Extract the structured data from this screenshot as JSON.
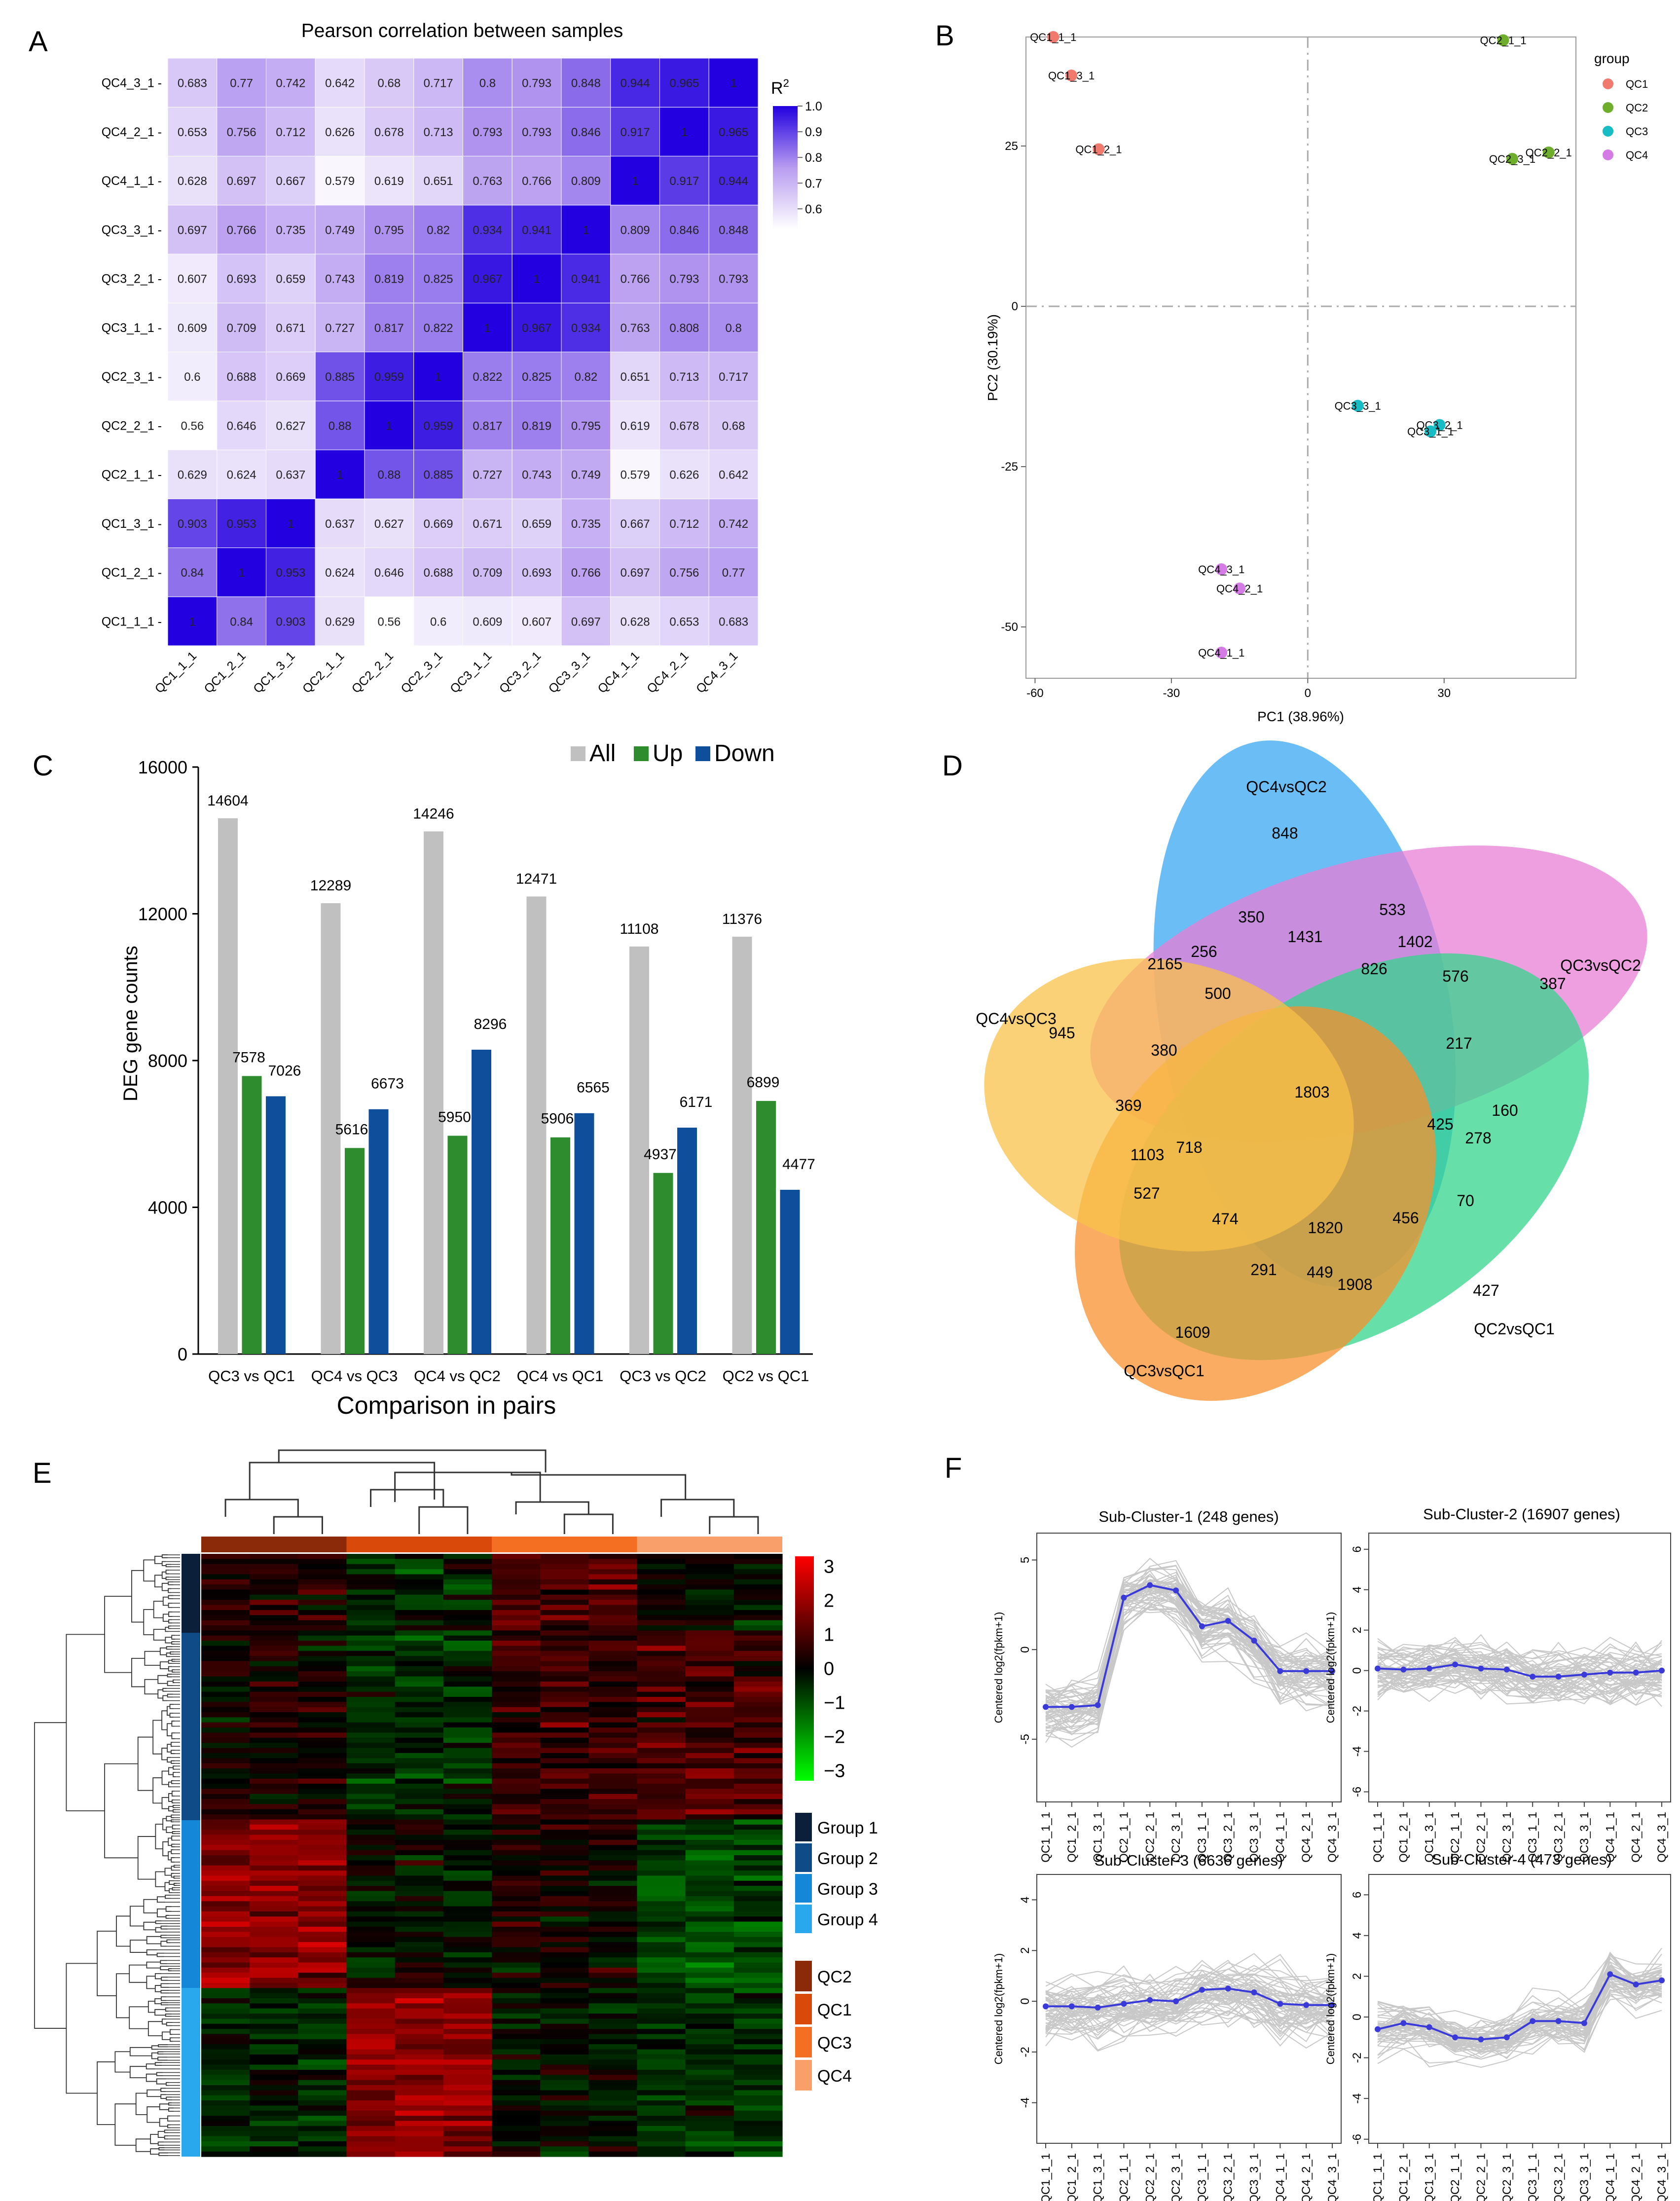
{
  "panel_letters": [
    "A",
    "B",
    "C",
    "D",
    "E",
    "F"
  ],
  "chart_data": [
    {
      "id": "A",
      "type": "heatmap",
      "title": "Pearson correlation between samples",
      "samples": [
        "QC1_1_1",
        "QC1_2_1",
        "QC1_3_1",
        "QC2_1_1",
        "QC2_2_1",
        "QC2_3_1",
        "QC3_1_1",
        "QC3_2_1",
        "QC3_3_1",
        "QC4_1_1",
        "QC4_2_1",
        "QC4_3_1"
      ],
      "row_labels": [
        "QC4_3_1 -",
        "QC4_2_1 -",
        "QC4_1_1 -",
        "QC3_3_1 -",
        "QC3_2_1 -",
        "QC3_1_1 -",
        "QC2_3_1 -",
        "QC2_2_1 -",
        "QC2_1_1 -",
        "QC1_3_1 -",
        "QC1_2_1 -",
        "QC1_1_1 -"
      ],
      "matrix": [
        [
          1,
          0.84,
          0.903,
          0.629,
          0.56,
          0.6,
          0.609,
          0.607,
          0.697,
          0.628,
          0.653,
          0.683
        ],
        [
          0.84,
          1,
          0.953,
          0.624,
          0.646,
          0.688,
          0.709,
          0.693,
          0.766,
          0.697,
          0.756,
          0.77
        ],
        [
          0.903,
          0.953,
          1,
          0.637,
          0.627,
          0.669,
          0.671,
          0.659,
          0.735,
          0.667,
          0.712,
          0.742
        ],
        [
          0.629,
          0.624,
          0.637,
          1,
          0.88,
          0.885,
          0.727,
          0.743,
          0.749,
          0.579,
          0.626,
          0.642
        ],
        [
          0.56,
          0.646,
          0.627,
          0.88,
          1,
          0.959,
          0.817,
          0.819,
          0.795,
          0.619,
          0.678,
          0.68
        ],
        [
          0.6,
          0.688,
          0.669,
          0.885,
          0.959,
          1,
          0.822,
          0.825,
          0.82,
          0.651,
          0.713,
          0.717
        ],
        [
          0.609,
          0.709,
          0.671,
          0.727,
          0.817,
          0.822,
          1,
          0.967,
          0.934,
          0.763,
          0.808,
          0.8
        ],
        [
          0.607,
          0.693,
          0.659,
          0.743,
          0.819,
          0.825,
          0.967,
          1,
          0.941,
          0.766,
          0.793,
          0.793
        ],
        [
          0.697,
          0.766,
          0.735,
          0.749,
          0.795,
          0.82,
          0.934,
          0.941,
          1,
          0.809,
          0.846,
          0.848
        ],
        [
          0.628,
          0.697,
          0.667,
          0.579,
          0.619,
          0.651,
          0.763,
          0.766,
          0.809,
          1,
          0.917,
          0.944
        ],
        [
          0.653,
          0.756,
          0.712,
          0.626,
          0.678,
          0.713,
          0.793,
          0.793,
          0.846,
          0.917,
          1,
          0.965
        ],
        [
          0.683,
          0.77,
          0.742,
          0.642,
          0.68,
          0.717,
          0.8,
          0.793,
          0.848,
          0.944,
          0.965,
          1
        ]
      ],
      "cell_text": [
        [
          "1",
          "0.84",
          "0.903",
          "0.629",
          "0.56",
          "0.6",
          "0.609",
          "0.607",
          "0.697",
          "0.628",
          "0.653",
          "0.683"
        ],
        [
          "0.84",
          "1",
          "0.953",
          "0.624",
          "0.646",
          "0.688",
          "0.709",
          "0.693",
          "0.766",
          "0.697",
          "0.756",
          "0.77"
        ],
        [
          "0.903",
          "0.953",
          "1",
          "0.637",
          "0.627",
          "0.669",
          "0.671",
          "0.659",
          "0.735",
          "0.667",
          "0.712",
          "0.742"
        ],
        [
          "0.629",
          "0.624",
          "0.637",
          "1",
          "0.88",
          "0.885",
          "0.727",
          "0.743",
          "0.749",
          "0.579",
          "0.626",
          "0.642"
        ],
        [
          "0.56",
          "0.646",
          "0.627",
          "0.88",
          "1",
          "0.959",
          "0.817",
          "0.819",
          "0.795",
          "0.619",
          "0.678",
          "0.68"
        ],
        [
          "0.6",
          "0.688",
          "0.669",
          "0.885",
          "0.959",
          "1",
          "0.822",
          "0.825",
          "0.82",
          "0.651",
          "0.713",
          "0.717"
        ],
        [
          "0.609",
          "0.709",
          "0.671",
          "0.727",
          "0.817",
          "0.822",
          "1",
          "0.967",
          "0.934",
          "0.763",
          "0.808",
          "0.8"
        ],
        [
          "0.607",
          "0.693",
          "0.659",
          "0.743",
          "0.819",
          "0.825",
          "0.967",
          "1",
          "0.941",
          "0.766",
          "0.793",
          "0.793"
        ],
        [
          "0.697",
          "0.766",
          "0.735",
          "0.749",
          "0.795",
          "0.82",
          "0.934",
          "0.941",
          "1",
          "0.809",
          "0.846",
          "0.848"
        ],
        [
          "0.628",
          "0.697",
          "0.667",
          "0.579",
          "0.619",
          "0.651",
          "0.763",
          "0.766",
          "0.809",
          "1",
          "0.917",
          "0.944"
        ],
        [
          "0.653",
          "0.756",
          "0.712",
          "0.626",
          "0.678",
          "0.713",
          "0.793",
          "0.793",
          "0.846",
          "0.917",
          "1",
          "0.965"
        ],
        [
          "0.683",
          "0.77",
          "0.742",
          "0.642",
          "0.68",
          "0.717",
          "0.8",
          "0.793",
          "0.848",
          "0.944",
          "0.965",
          "1"
        ]
      ],
      "legend_title": "R",
      "legend_title_sup": "2",
      "legend_ticks": [
        "1.0",
        "0.9",
        "0.8",
        "0.7",
        "0.6"
      ],
      "legend_tick_values": [
        1.0,
        0.9,
        0.8,
        0.7,
        0.6
      ],
      "color_range": [
        0.56,
        1.0
      ],
      "colors": {
        "low": "#ffffff",
        "mid": "#b89cf0",
        "high": "#2200e0"
      }
    },
    {
      "id": "B",
      "type": "scatter",
      "xlabel": "PC1 (38.96%)",
      "ylabel": "PC2 (30.19%)",
      "xlim": [
        -62,
        59
      ],
      "ylim": [
        -58,
        42
      ],
      "xticks": [
        -60,
        -30,
        0,
        30
      ],
      "xtick_labels": [
        "-60",
        "-30",
        "0",
        "30"
      ],
      "yticks": [
        25,
        0,
        -25,
        -50
      ],
      "ytick_labels": [
        "25",
        "0",
        "-25",
        "-50"
      ],
      "legend_title": "group",
      "groups": [
        {
          "name": "QC1",
          "color": "#f07a6e"
        },
        {
          "name": "QC2",
          "color": "#6fae2c"
        },
        {
          "name": "QC3",
          "color": "#18bcc4"
        },
        {
          "name": "QC4",
          "color": "#d47be6"
        }
      ],
      "points": [
        {
          "label": "QC1_1_1",
          "group": 0,
          "x": -56,
          "y": 42
        },
        {
          "label": "QC1_3_1",
          "group": 0,
          "x": -52,
          "y": 36
        },
        {
          "label": "QC1_2_1",
          "group": 0,
          "x": -46,
          "y": 24.5
        },
        {
          "label": "QC2_1_1",
          "group": 1,
          "x": 43,
          "y": 41.5
        },
        {
          "label": "QC2_3_1",
          "group": 1,
          "x": 45,
          "y": 23
        },
        {
          "label": "QC2_2_1",
          "group": 1,
          "x": 53,
          "y": 24
        },
        {
          "label": "QC3_3_1",
          "group": 2,
          "x": 11,
          "y": -15.5
        },
        {
          "label": "QC3_2_1",
          "group": 2,
          "x": 29,
          "y": -18.5
        },
        {
          "label": "QC3_1_1",
          "group": 2,
          "x": 27,
          "y": -19.5
        },
        {
          "label": "QC4_3_1",
          "group": 3,
          "x": -19,
          "y": -41
        },
        {
          "label": "QC4_2_1",
          "group": 3,
          "x": -15,
          "y": -44
        },
        {
          "label": "QC4_1_1",
          "group": 3,
          "x": -19,
          "y": -54
        }
      ]
    },
    {
      "id": "C",
      "type": "bar",
      "categories": [
        "QC3 vs QC1",
        "QC4 vs QC3",
        "QC4 vs QC2",
        "QC4 vs QC1",
        "QC3 vs QC2",
        "QC2 vs QC1"
      ],
      "series": [
        {
          "name": "All",
          "color": "#c0c0c0",
          "values": [
            14604,
            12289,
            14246,
            12471,
            11108,
            11376
          ],
          "labels": [
            "14604",
            "12289",
            "14246",
            "12471",
            "11108",
            "11376"
          ]
        },
        {
          "name": "Up",
          "color": "#2e8b2e",
          "values": [
            7578,
            5616,
            5950,
            5906,
            4937,
            6899
          ],
          "labels": [
            "7578",
            "5616",
            "5950",
            "5906",
            "4937",
            "6899"
          ]
        },
        {
          "name": "Down",
          "color": "#0f4e9a",
          "values": [
            7026,
            6673,
            8296,
            6565,
            6171,
            4477
          ],
          "labels": [
            "7026",
            "6673",
            "8296",
            "6565",
            "6171",
            "4477"
          ]
        }
      ],
      "xlabel": "Comparison in pairs",
      "ylabel": "DEG gene counts",
      "ylim": [
        0,
        16000
      ],
      "yticks": [
        0,
        4000,
        8000,
        12000,
        16000
      ],
      "ytick_labels": [
        "0",
        "4000",
        "8000",
        "12000",
        "16000"
      ]
    },
    {
      "id": "D",
      "type": "venn",
      "sets": [
        {
          "name": "QC4vsQC2",
          "color": "#3aa8f2",
          "only": "848"
        },
        {
          "name": "QC3vsQC2",
          "color": "#e87fd6",
          "only": "387"
        },
        {
          "name": "QC2vsQC1",
          "color": "#34d48c",
          "only": "427"
        },
        {
          "name": "QC3vsQC1",
          "color": "#f7902e",
          "only": "1609"
        },
        {
          "name": "QC4vsQC3",
          "color": "#f8c24a",
          "only": "945"
        }
      ],
      "region_values": [
        "350",
        "533",
        "1431",
        "1402",
        "2165",
        "256",
        "826",
        "576",
        "500",
        "217",
        "380",
        "1803",
        "369",
        "425",
        "160",
        "278",
        "1103",
        "718",
        "527",
        "70",
        "474",
        "1820",
        "456",
        "291",
        "449",
        "1908"
      ]
    },
    {
      "id": "E",
      "type": "heatmap",
      "scale_ticks": [
        "3",
        "2",
        "1",
        "0",
        "−1",
        "−2",
        "−3"
      ],
      "scale_values": [
        3,
        2,
        1,
        0,
        -1,
        -2,
        -3
      ],
      "gene_groups": [
        {
          "name": "Group 1",
          "color": "#0b1e3a"
        },
        {
          "name": "Group 2",
          "color": "#0f4b86"
        },
        {
          "name": "Group 3",
          "color": "#1487d9"
        },
        {
          "name": "Group 4",
          "color": "#29a8ee"
        }
      ],
      "sample_groups": [
        {
          "name": "QC2",
          "color": "#8a2a08"
        },
        {
          "name": "QC1",
          "color": "#d94a0a"
        },
        {
          "name": "QC3",
          "color": "#f56f22"
        },
        {
          "name": "QC4",
          "color": "#f9a06a"
        }
      ],
      "colors": {
        "low": "#00e000",
        "mid": "#000000",
        "high": "#ff0000"
      }
    },
    {
      "id": "F",
      "type": "line",
      "ylabel": "Centered log2(fpkm+1)",
      "x": [
        "QC1_1_1",
        "QC1_2_1",
        "QC1_3_1",
        "QC2_1_1",
        "QC2_2_1",
        "QC2_3_1",
        "QC3_1_1",
        "QC3_2_1",
        "QC3_3_1",
        "QC4_1_1",
        "QC4_2_1",
        "QC4_3_1"
      ],
      "panels": [
        {
          "title": "Sub-Cluster-1 (248 genes)",
          "ylim": [
            -8.5,
            6.5
          ],
          "yticks": [
            5,
            0,
            -5
          ],
          "ytick_labels": [
            "5",
            "0",
            "-5"
          ],
          "mean": [
            -3.2,
            -3.2,
            -3.1,
            2.9,
            3.6,
            3.3,
            1.3,
            1.6,
            0.5,
            -1.2,
            -1.2,
            -1.2
          ],
          "spread": 2.2
        },
        {
          "title": "Sub-Cluster-2 (16907 genes)",
          "ylim": [
            -6.5,
            6.8
          ],
          "yticks": [
            6,
            4,
            2,
            0,
            -2,
            -4,
            -6
          ],
          "ytick_labels": [
            "6",
            "4",
            "2",
            "0",
            "-2",
            "-4",
            "-6"
          ],
          "mean": [
            0.1,
            0.05,
            0.1,
            0.3,
            0.1,
            0.05,
            -0.3,
            -0.3,
            -0.2,
            -0.1,
            -0.1,
            0
          ],
          "spread": 2.0
        },
        {
          "title": "Sub-Cluster-3 (6636 genes)",
          "ylim": [
            -5.6,
            5
          ],
          "yticks": [
            4,
            2,
            0,
            -2,
            -4
          ],
          "ytick_labels": [
            "4",
            "2",
            "0",
            "-2",
            "-4"
          ],
          "mean": [
            -0.2,
            -0.2,
            -0.25,
            -0.1,
            0.05,
            0,
            0.45,
            0.5,
            0.35,
            -0.1,
            -0.15,
            -0.15
          ],
          "spread": 1.8
        },
        {
          "title": "Sub-Cluster-4 (473 genes)",
          "ylim": [
            -6.2,
            7
          ],
          "yticks": [
            6,
            4,
            2,
            0,
            -2,
            -4,
            -6
          ],
          "ytick_labels": [
            "6",
            "4",
            "2",
            "0",
            "-2",
            "-4",
            "-6"
          ],
          "mean": [
            -0.6,
            -0.3,
            -0.5,
            -1.0,
            -1.1,
            -1.0,
            -0.2,
            -0.2,
            -0.3,
            2.1,
            1.6,
            1.8
          ],
          "spread": 1.6
        }
      ]
    }
  ]
}
